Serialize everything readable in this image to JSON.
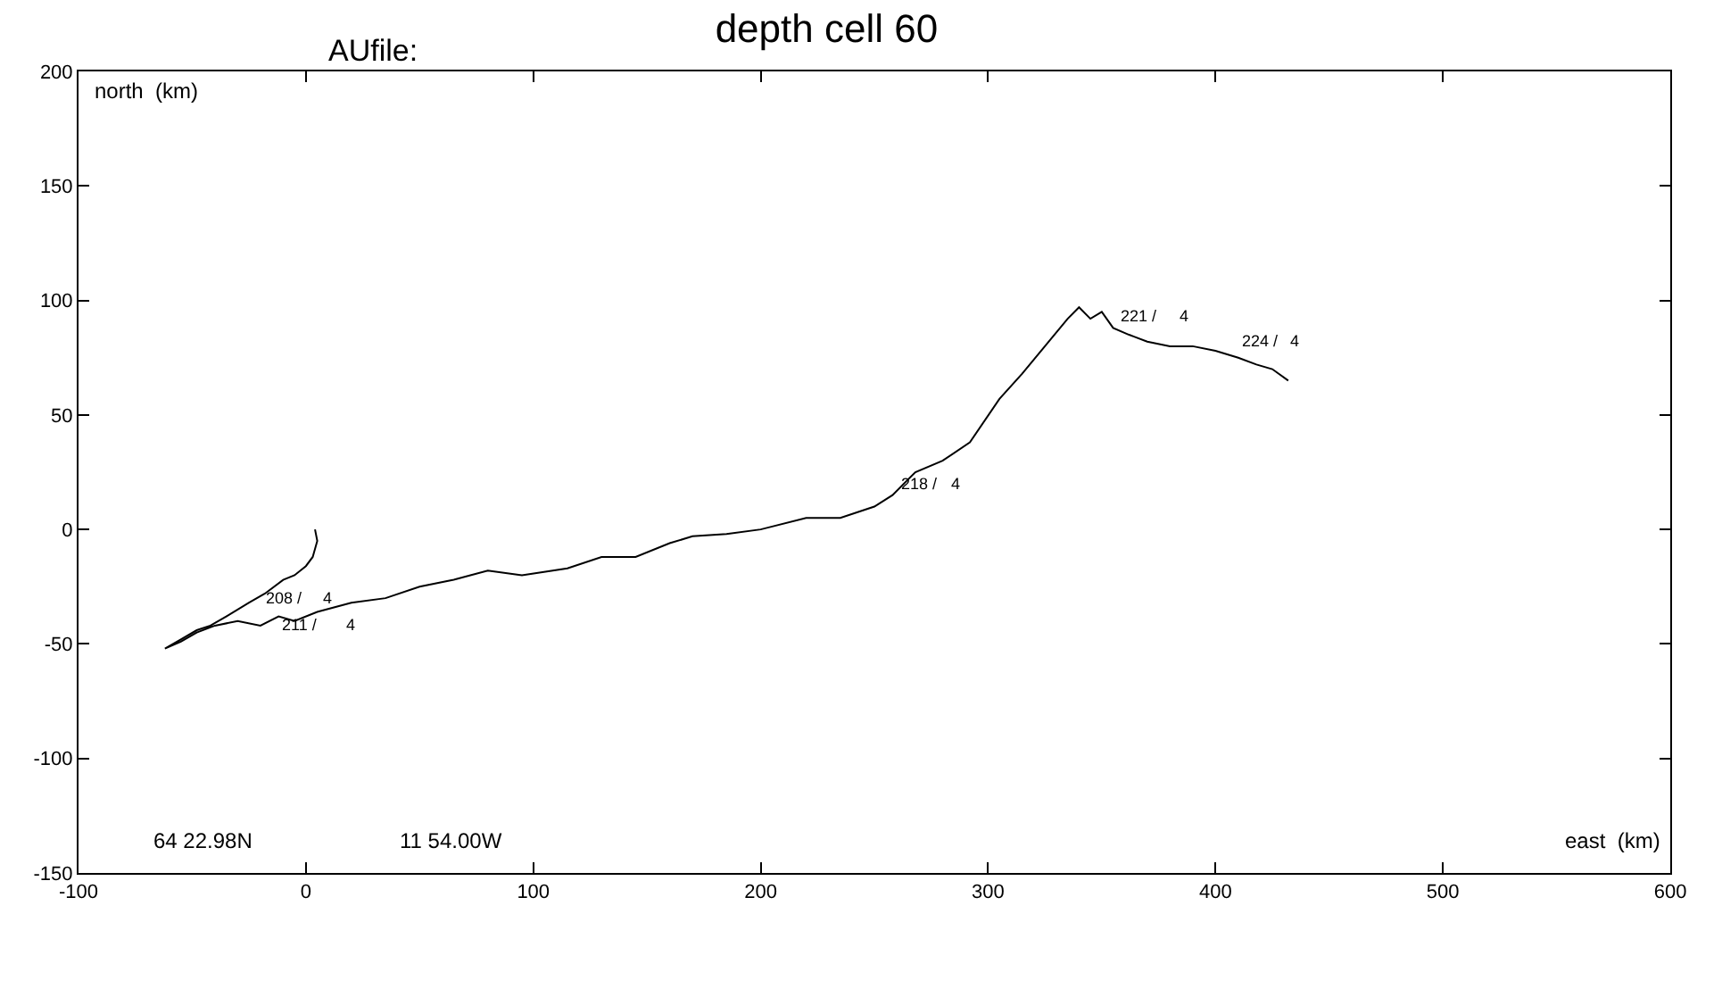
{
  "chart_data": {
    "type": "line",
    "title": "depth cell 60",
    "xlabel": "east  (km)",
    "ylabel": "north  (km)",
    "x": [
      4,
      5,
      3,
      0,
      -5,
      -10,
      -18,
      -25,
      -35,
      -42,
      -48,
      -55,
      -62,
      -55,
      -48,
      -40,
      -30,
      -20,
      -12,
      -5,
      5,
      20,
      35,
      50,
      65,
      80,
      95,
      115,
      130,
      145,
      160,
      170,
      185,
      200,
      220,
      235,
      250,
      258,
      268,
      280,
      292,
      305,
      315,
      325,
      335,
      340,
      345,
      350,
      355,
      362,
      370,
      380,
      390,
      400,
      410,
      418,
      425,
      432
    ],
    "series": [
      {
        "color": "#000000",
        "values": [
          0,
          -5,
          -12,
          -16,
          -20,
          -22,
          -28,
          -32,
          -38,
          -42,
          -44,
          -48,
          -52,
          -49,
          -45,
          -42,
          -40,
          -42,
          -38,
          -40,
          -36,
          -32,
          -30,
          -25,
          -22,
          -18,
          -20,
          -17,
          -12,
          -12,
          -6,
          -3,
          -2,
          0,
          5,
          5,
          10,
          15,
          25,
          30,
          38,
          57,
          68,
          80,
          92,
          97,
          92,
          95,
          88,
          85,
          82,
          80,
          80,
          78,
          75,
          72,
          70,
          65
        ]
      }
    ],
    "xlim": [
      -100,
      600
    ],
    "xticks": [
      -100,
      0,
      100,
      200,
      300,
      400,
      500,
      600
    ],
    "ylim": [
      -150,
      200
    ],
    "yticks": [
      -150,
      -100,
      -50,
      0,
      50,
      100,
      150,
      200
    ],
    "grid": false,
    "marker": "none",
    "line_style": "solid",
    "annotations": [
      "AUfile:",
      "64 22.98N",
      "11 54.00W",
      "208 /",
      "4",
      "211 /",
      "4",
      "218 /",
      "4",
      "221 /",
      "4",
      "224 /",
      "4"
    ]
  }
}
